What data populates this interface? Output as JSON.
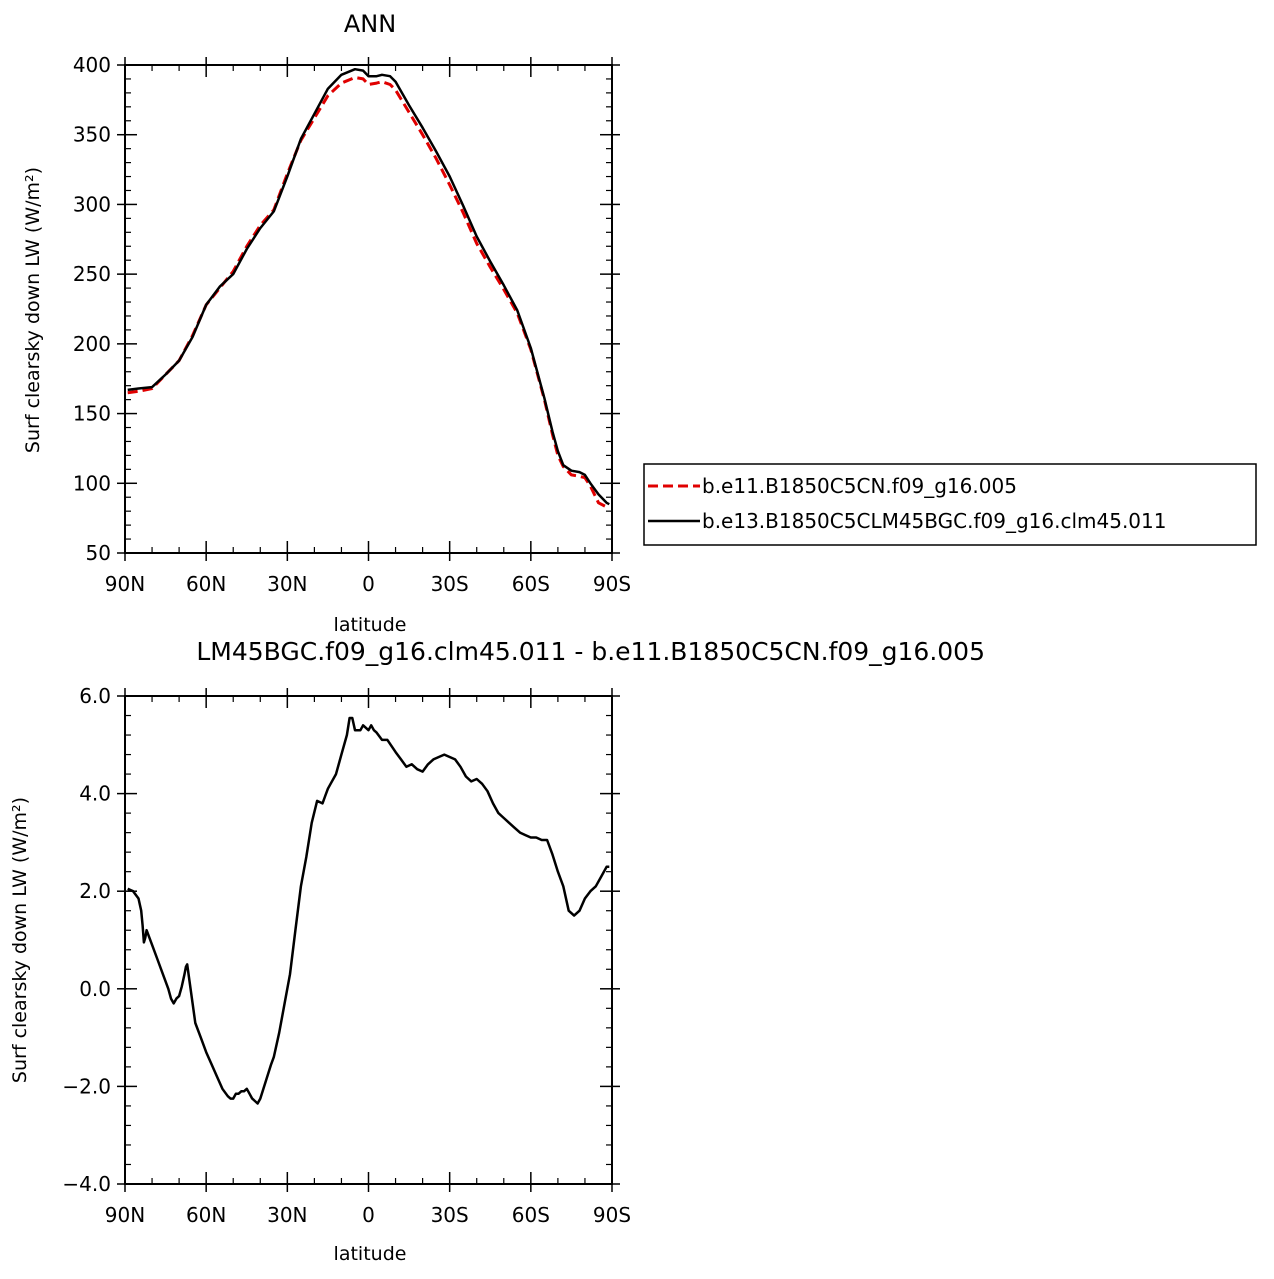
{
  "chart_data": [
    {
      "type": "line",
      "title": "ANN",
      "xlabel": "latitude",
      "ylabel": "Surf clearsky down LW (W/m²)",
      "xlim": [
        90,
        -90
      ],
      "ylim": [
        50,
        400
      ],
      "xticks": [
        90,
        60,
        30,
        0,
        -30,
        -60,
        -90
      ],
      "xtick_labels": [
        "90N",
        "60N",
        "30N",
        "0",
        "30S",
        "60S",
        "90S"
      ],
      "yticks": [
        50,
        100,
        150,
        200,
        250,
        300,
        350,
        400
      ],
      "ytick_labels": [
        "50",
        "100",
        "150",
        "200",
        "250",
        "300",
        "350",
        "400"
      ],
      "legend_position": "right",
      "series": [
        {
          "name": "b.e11.B1850C5CN.f09_g16.005",
          "color": "#e00000",
          "style": "dashed",
          "x": [
            89,
            85,
            80,
            75,
            70,
            65,
            60,
            55,
            50,
            45,
            40,
            35,
            30,
            25,
            20,
            15,
            10,
            5,
            2,
            0,
            -3,
            -5,
            -8,
            -10,
            -15,
            -20,
            -25,
            -30,
            -35,
            -40,
            -45,
            -50,
            -55,
            -60,
            -65,
            -68,
            -70,
            -72,
            -75,
            -78,
            -80,
            -82,
            -85,
            -88,
            -89
          ],
          "y": [
            165,
            166,
            168,
            178,
            188,
            206,
            228,
            240,
            252,
            270,
            285,
            296,
            322,
            346,
            362,
            378,
            387,
            391,
            390,
            386,
            387,
            388,
            386,
            382,
            366,
            350,
            333,
            314,
            294,
            272,
            255,
            239,
            222,
            196,
            160,
            135,
            120,
            112,
            106,
            105,
            104,
            98,
            86,
            83,
            83
          ]
        },
        {
          "name": "b.e13.B1850C5CLM45BGC.f09_g16.clm45.011",
          "color": "#000000",
          "style": "solid",
          "x": [
            89,
            85,
            80,
            75,
            70,
            65,
            60,
            55,
            50,
            45,
            40,
            35,
            30,
            25,
            20,
            15,
            10,
            5,
            2,
            0,
            -3,
            -5,
            -8,
            -10,
            -15,
            -20,
            -25,
            -30,
            -35,
            -40,
            -45,
            -50,
            -55,
            -60,
            -65,
            -68,
            -70,
            -72,
            -75,
            -78,
            -80,
            -82,
            -85,
            -88,
            -89
          ],
          "y": [
            167,
            168,
            169,
            178,
            188,
            205,
            228,
            241,
            250,
            268,
            283,
            295,
            320,
            347,
            365,
            383,
            393,
            397,
            396,
            392,
            392,
            393,
            392,
            388,
            371,
            355,
            338,
            320,
            299,
            277,
            259,
            242,
            224,
            197,
            161,
            137,
            123,
            113,
            109,
            108,
            106,
            100,
            92,
            86,
            85
          ]
        }
      ]
    },
    {
      "type": "line",
      "title": "LM45BGC.f09_g16.clm45.011 - b.e11.B1850C5CN.f09_g16.005",
      "xlabel": "latitude",
      "ylabel": "Surf clearsky down LW (W/m²)",
      "xlim": [
        90,
        -90
      ],
      "ylim": [
        -4,
        6
      ],
      "xticks": [
        90,
        60,
        30,
        0,
        -30,
        -60,
        -90
      ],
      "xtick_labels": [
        "90N",
        "60N",
        "30N",
        "0",
        "30S",
        "60S",
        "90S"
      ],
      "yticks": [
        -4,
        -2,
        0,
        2,
        4,
        6
      ],
      "ytick_labels": [
        "−4.0",
        "−2.0",
        "0.0",
        "2.0",
        "4.0",
        "6.0"
      ],
      "series": [
        {
          "color": "#000000",
          "style": "solid",
          "x": [
            89,
            87,
            85,
            84,
            83.5,
            83,
            82.5,
            82,
            80,
            78,
            76,
            74,
            73,
            72,
            71,
            70,
            69,
            68,
            67.5,
            67,
            66,
            65,
            64,
            62,
            60,
            58,
            56,
            54,
            52,
            51,
            50,
            49,
            48,
            47,
            46,
            45,
            44,
            43,
            42,
            41,
            40,
            38,
            36,
            35,
            33,
            31,
            29,
            27,
            25,
            23,
            21,
            19,
            17,
            16,
            15,
            14,
            12,
            10,
            8,
            7,
            6,
            5,
            4,
            3,
            2,
            0,
            -1,
            -2,
            -3,
            -5,
            -7,
            -10,
            -12,
            -14,
            -16,
            -18,
            -20,
            -22,
            -24,
            -26,
            -28,
            -30,
            -32,
            -34,
            -36,
            -38,
            -40,
            -42,
            -44,
            -46,
            -48,
            -50,
            -52,
            -54,
            -56,
            -58,
            -60,
            -62,
            -64,
            -66,
            -68,
            -70,
            -72,
            -74,
            -76,
            -78,
            -80,
            -82,
            -84,
            -86,
            -88,
            -89
          ],
          "y": [
            2.05,
            2.0,
            1.85,
            1.6,
            1.3,
            0.95,
            1.05,
            1.2,
            0.9,
            0.6,
            0.3,
            0.0,
            -0.2,
            -0.3,
            -0.2,
            -0.15,
            0.05,
            0.3,
            0.45,
            0.5,
            0.1,
            -0.3,
            -0.7,
            -1.0,
            -1.3,
            -1.55,
            -1.8,
            -2.05,
            -2.2,
            -2.25,
            -2.25,
            -2.15,
            -2.15,
            -2.1,
            -2.1,
            -2.05,
            -2.15,
            -2.25,
            -2.3,
            -2.35,
            -2.25,
            -1.9,
            -1.55,
            -1.4,
            -0.9,
            -0.3,
            0.3,
            1.2,
            2.1,
            2.7,
            3.4,
            3.85,
            3.8,
            3.95,
            4.1,
            4.2,
            4.4,
            4.8,
            5.2,
            5.55,
            5.55,
            5.3,
            5.3,
            5.3,
            5.4,
            5.3,
            5.4,
            5.3,
            5.25,
            5.1,
            5.1,
            4.85,
            4.7,
            4.55,
            4.6,
            4.5,
            4.45,
            4.6,
            4.7,
            4.75,
            4.8,
            4.75,
            4.7,
            4.55,
            4.35,
            4.25,
            4.3,
            4.2,
            4.05,
            3.8,
            3.6,
            3.5,
            3.4,
            3.3,
            3.2,
            3.15,
            3.1,
            3.1,
            3.05,
            3.05,
            2.75,
            2.4,
            2.1,
            1.6,
            1.5,
            1.6,
            1.85,
            2.0,
            2.1,
            2.3,
            2.5,
            2.5
          ]
        }
      ]
    }
  ]
}
